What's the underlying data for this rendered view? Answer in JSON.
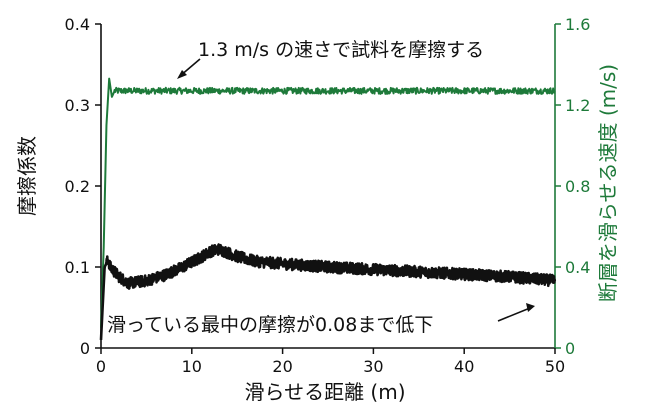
{
  "chart_data": {
    "type": "line",
    "xlabel": "滑らせる距離 (m)",
    "ylabel_left": "摩擦係数",
    "ylabel_right": "断層を滑らせる速度 (m/s)",
    "x_ticks": [
      "0",
      "10",
      "20",
      "30",
      "40",
      "50"
    ],
    "y_left_ticks": [
      "0",
      "0.1",
      "0.2",
      "0.3",
      "0.4"
    ],
    "y_right_ticks": [
      "0",
      "0.4",
      "0.8",
      "1.2",
      "1.6"
    ],
    "xlim": [
      0,
      50
    ],
    "ylim_left": [
      0,
      0.4
    ],
    "ylim_right": [
      0,
      1.6
    ],
    "grid": false,
    "series": [
      {
        "axis": "right",
        "color": "#1e7a3a",
        "x": [
          0,
          0.3,
          0.6,
          0.9,
          1.2,
          1.5,
          2,
          3,
          5,
          10,
          15,
          20,
          25,
          30,
          35,
          40,
          45,
          50
        ],
        "y": [
          0.1,
          0.5,
          1.1,
          1.33,
          1.24,
          1.27,
          1.27,
          1.27,
          1.27,
          1.27,
          1.27,
          1.27,
          1.27,
          1.27,
          1.27,
          1.27,
          1.27,
          1.27
        ]
      },
      {
        "axis": "left",
        "color": "#111111",
        "x": [
          0,
          0.4,
          0.8,
          1,
          2,
          3,
          5,
          7,
          9,
          11,
          12,
          13,
          15,
          17,
          20,
          25,
          30,
          35,
          40,
          45,
          50
        ],
        "y": [
          0.01,
          0.1,
          0.109,
          0.1,
          0.088,
          0.08,
          0.083,
          0.09,
          0.1,
          0.112,
          0.119,
          0.122,
          0.113,
          0.107,
          0.104,
          0.1,
          0.097,
          0.094,
          0.091,
          0.088,
          0.083
        ]
      }
    ],
    "annotations": {
      "speed": "1.3 m/s の速さで試料を摩擦する",
      "friction": "滑っている最中の摩擦が0.08まで低下"
    }
  }
}
